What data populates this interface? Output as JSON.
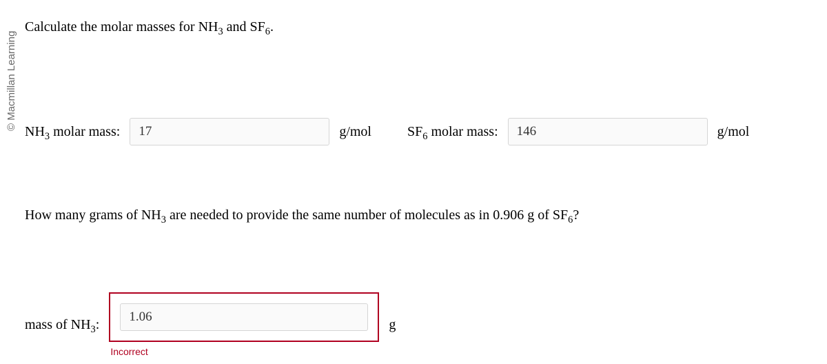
{
  "copyright": "© Macmillan Learning",
  "q1": {
    "prefix": "Calculate the molar masses for NH",
    "sub1": "3",
    "mid": " and SF",
    "sub2": "6",
    "suffix": "."
  },
  "row": {
    "nh3_label_pre": "NH",
    "nh3_label_sub": "3",
    "nh3_label_post": " molar mass:",
    "nh3_value": "17",
    "nh3_unit": "g/mol",
    "sf6_label_pre": "SF",
    "sf6_label_sub": "6",
    "sf6_label_post": " molar mass:",
    "sf6_value": "146",
    "sf6_unit": "g/mol"
  },
  "q2": {
    "p1": "How many grams of NH",
    "s1": "3",
    "p2": " are needed to provide the same number of molecules as in 0.906 g of SF",
    "s2": "6",
    "p3": "?"
  },
  "answer": {
    "label_pre": "mass of NH",
    "label_sub": "3",
    "label_post": ":",
    "value": "1.06",
    "unit": "g",
    "feedback": "Incorrect",
    "border_color": "#b00020"
  }
}
